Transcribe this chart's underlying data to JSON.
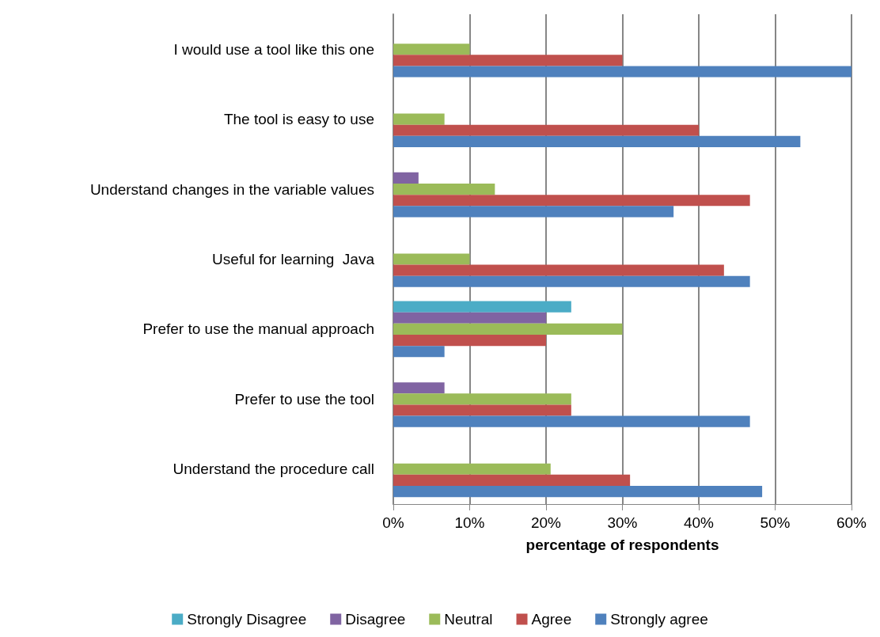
{
  "chart_data": {
    "type": "bar",
    "orientation": "horizontal",
    "xlabel": "percentage of respondents",
    "categories": [
      "I would use a tool like this one",
      "The tool is easy to use",
      "Understand changes in the variable values",
      "Useful for learning  Java",
      "Prefer to use the manual approach",
      "Prefer to use the tool",
      "Understand the procedure call"
    ],
    "series": [
      {
        "name": "Strongly Disagree",
        "color": "#4bacc6",
        "values": [
          null,
          null,
          null,
          null,
          23.3,
          null,
          null
        ]
      },
      {
        "name": "Disagree",
        "color": "#8064a2",
        "values": [
          null,
          null,
          3.3,
          null,
          20,
          6.7,
          null
        ]
      },
      {
        "name": "Neutral",
        "color": "#9bbb59",
        "values": [
          10,
          6.7,
          13.3,
          10,
          30,
          23.3,
          20.6
        ]
      },
      {
        "name": "Agree",
        "color": "#c0504d",
        "values": [
          30,
          40,
          46.7,
          43.3,
          20,
          23.3,
          31
        ]
      },
      {
        "name": "Strongly agree",
        "color": "#4f81bd",
        "values": [
          60,
          53.3,
          36.7,
          46.7,
          6.7,
          46.7,
          48.3
        ]
      }
    ],
    "xlim": [
      0,
      60
    ],
    "xticks": [
      {
        "value": 0,
        "label": "0%"
      },
      {
        "value": 10,
        "label": "10%"
      },
      {
        "value": 20,
        "label": "20%"
      },
      {
        "value": 30,
        "label": "30%"
      },
      {
        "value": 40,
        "label": "40%"
      },
      {
        "value": 50,
        "label": "50%"
      },
      {
        "value": 60,
        "label": "60%"
      }
    ],
    "grid": "x",
    "legend": "bottom"
  }
}
